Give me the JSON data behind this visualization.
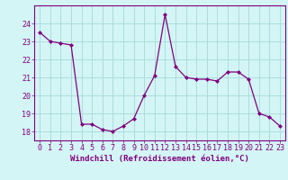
{
  "x": [
    0,
    1,
    2,
    3,
    4,
    5,
    6,
    7,
    8,
    9,
    10,
    11,
    12,
    13,
    14,
    15,
    16,
    17,
    18,
    19,
    20,
    21,
    22,
    23
  ],
  "y": [
    23.5,
    23.0,
    22.9,
    22.8,
    18.4,
    18.4,
    18.1,
    18.0,
    18.3,
    18.7,
    20.0,
    21.1,
    24.5,
    21.6,
    21.0,
    20.9,
    20.9,
    20.8,
    21.3,
    21.3,
    20.9,
    19.0,
    18.8,
    18.3
  ],
  "line_color": "#800080",
  "marker": "D",
  "marker_size": 2,
  "bg_color": "#d4f5f5",
  "grid_color": "#aadddd",
  "xlabel": "Windchill (Refroidissement éolien,°C)",
  "xlabel_color": "#800080",
  "tick_color": "#800080",
  "ylim": [
    17.5,
    25.0
  ],
  "xlim": [
    -0.5,
    23.5
  ],
  "yticks": [
    18,
    19,
    20,
    21,
    22,
    23,
    24
  ],
  "xtick_labels": [
    "0",
    "1",
    "2",
    "3",
    "4",
    "5",
    "6",
    "7",
    "8",
    "9",
    "10",
    "11",
    "12",
    "13",
    "14",
    "15",
    "16",
    "17",
    "18",
    "19",
    "20",
    "21",
    "22",
    "23"
  ],
  "label_fontsize": 6.5,
  "tick_fontsize": 6.0
}
